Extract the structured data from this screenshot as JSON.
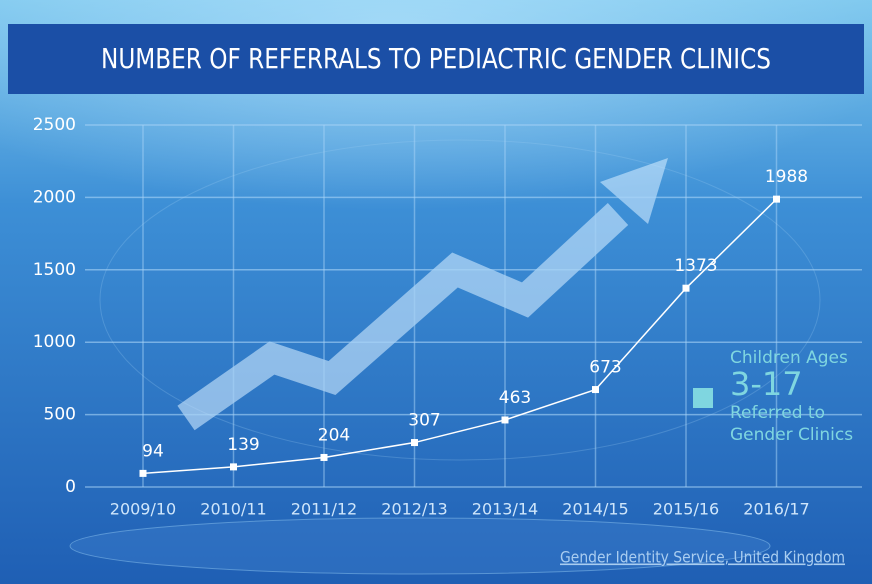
{
  "chart_data": {
    "type": "line",
    "title": "NUMBER OF REFERRALS TO PEDIACTRIC GENDER CLINICS",
    "categories": [
      "2009/10",
      "2010/11",
      "2011/12",
      "2012/13",
      "2013/14",
      "2014/15",
      "2015/16",
      "2016/17"
    ],
    "values": [
      94,
      139,
      204,
      307,
      463,
      673,
      1373,
      1988
    ],
    "color": "#ffffff",
    "ylim": [
      0,
      2500
    ],
    "yticks": [
      0,
      500,
      1000,
      1500,
      2000,
      2500
    ],
    "grid": true,
    "legend": {
      "lines": [
        "Children Ages",
        "3-17",
        "Referred to",
        "Gender Clinics"
      ],
      "color": "#7fd6e0"
    },
    "source": "Gender Identity Service, United Kingdom"
  }
}
